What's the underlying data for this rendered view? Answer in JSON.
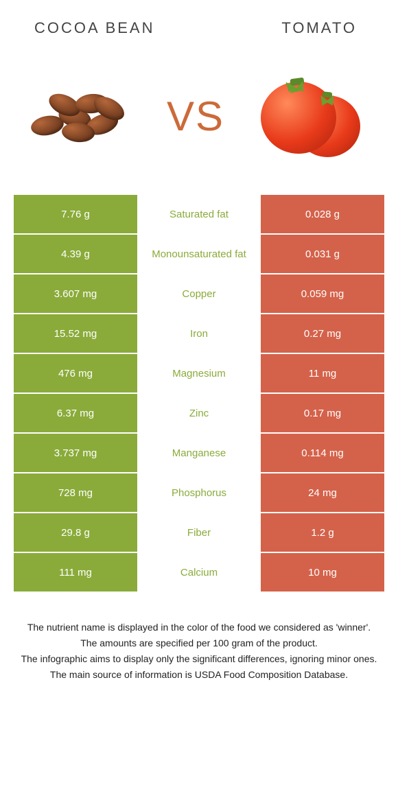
{
  "header": {
    "left_title": "COCOA BEAN",
    "right_title": "TOMATO"
  },
  "vs_text": "VS",
  "colors": {
    "left_bg": "#8aab3a",
    "right_bg": "#d4624a",
    "mid_left_text": "#cc6a3a",
    "mid_winner_green": "#8aab3a",
    "mid_winner_red": "#d4624a",
    "row_gap_bg": "#ffffff"
  },
  "rows": [
    {
      "left": "7.76 g",
      "label": "Saturated fat",
      "right": "0.028 g",
      "winner": "left"
    },
    {
      "left": "4.39 g",
      "label": "Monounsaturated fat",
      "right": "0.031 g",
      "winner": "left"
    },
    {
      "left": "3.607 mg",
      "label": "Copper",
      "right": "0.059 mg",
      "winner": "left"
    },
    {
      "left": "15.52 mg",
      "label": "Iron",
      "right": "0.27 mg",
      "winner": "left"
    },
    {
      "left": "476 mg",
      "label": "Magnesium",
      "right": "11 mg",
      "winner": "left"
    },
    {
      "left": "6.37 mg",
      "label": "Zinc",
      "right": "0.17 mg",
      "winner": "left"
    },
    {
      "left": "3.737 mg",
      "label": "Manganese",
      "right": "0.114 mg",
      "winner": "left"
    },
    {
      "left": "728 mg",
      "label": "Phosphorus",
      "right": "24 mg",
      "winner": "left"
    },
    {
      "left": "29.8 g",
      "label": "Fiber",
      "right": "1.2 g",
      "winner": "left"
    },
    {
      "left": "111 mg",
      "label": "Calcium",
      "right": "10 mg",
      "winner": "left"
    }
  ],
  "footer": {
    "line1": "The nutrient name is displayed in the color of the food we considered as 'winner'.",
    "line2": "The amounts are specified per 100 gram of the product.",
    "line3": "The infographic aims to display only the significant differences, ignoring minor ones.",
    "line4": "The main source of information is USDA Food Composition Database."
  }
}
